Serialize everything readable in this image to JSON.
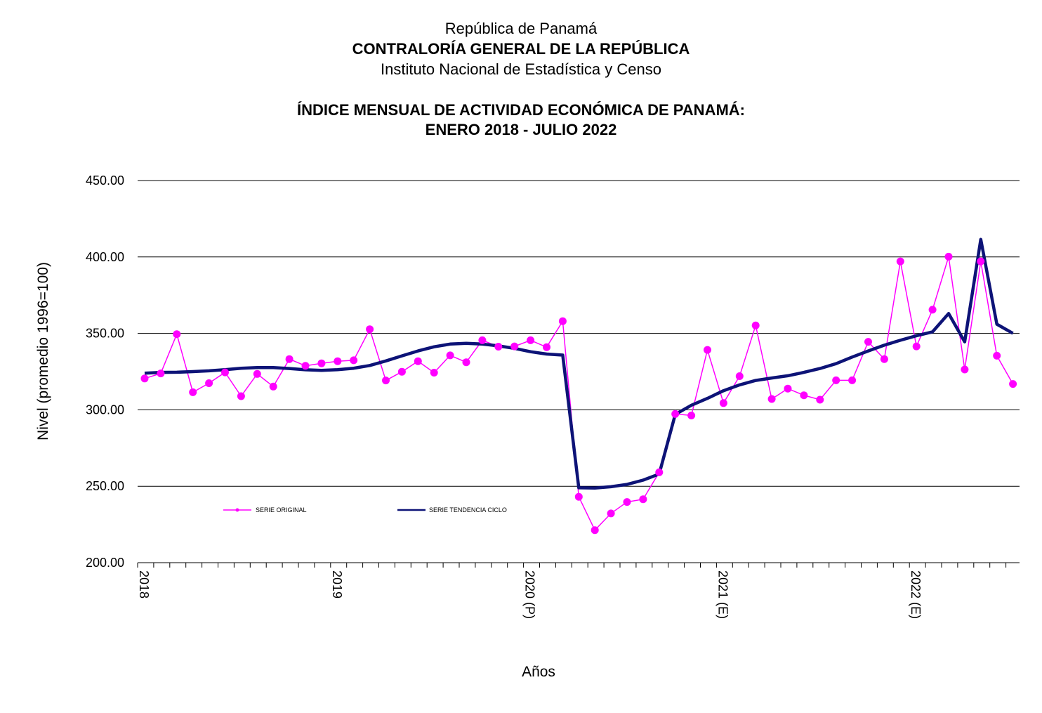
{
  "header": {
    "line1": "República de Panamá",
    "line2": "CONTRALORÍA  GENERAL DE LA REPÚBLICA",
    "line3": "Instituto Nacional de Estadística y Censo"
  },
  "chart_data": {
    "type": "line",
    "title": "ÍNDICE MENSUAL DE ACTIVIDAD ECONÓMICA DE PANAMÁ:",
    "subtitle": "ENERO 2018 -  JULIO 2022",
    "xlabel": "Años",
    "ylabel": "Nivel (promedio 1996=100)",
    "ylim": [
      200,
      450
    ],
    "yticks": [
      "200.00",
      "250.00",
      "300.00",
      "350.00",
      "400.00",
      "450.00"
    ],
    "ytick_values": [
      200,
      250,
      300,
      350,
      400,
      450
    ],
    "year_labels": [
      "2018",
      "2019",
      "2020 (P)",
      "2021 (E)",
      "2022 (E)"
    ],
    "grid": true,
    "legend_position": "inside-lower-left",
    "colors": {
      "original": "#ff00ff",
      "trend": "#0d1377",
      "grid": "#000000"
    },
    "series": [
      {
        "name": "SERIE ORIGINAL",
        "values": [
          320.5,
          323.8,
          349.5,
          311.5,
          317.4,
          324.5,
          308.9,
          323.5,
          315.2,
          333.2,
          328.8,
          330.4,
          331.8,
          332.4,
          352.7,
          319.2,
          324.9,
          331.8,
          324.3,
          335.6,
          331.1,
          345.5,
          341.3,
          341.5,
          345.5,
          341.0,
          358.0,
          243.1,
          221.3,
          232.2,
          239.7,
          241.5,
          259.1,
          297.3,
          296.3,
          339.2,
          304.4,
          322.0,
          355.2,
          307.1,
          313.9,
          309.5,
          306.6,
          319.3,
          319.3,
          344.5,
          333.2,
          397.1,
          341.5,
          365.5,
          400.2,
          326.4,
          397.1,
          335.4,
          316.9
        ]
      },
      {
        "name": "SERIE TENDENCIA CICLO",
        "values": [
          324.0,
          324.5,
          324.6,
          325.0,
          325.5,
          326.3,
          327.2,
          327.6,
          327.6,
          327.0,
          326.2,
          325.8,
          326.3,
          327.2,
          329.0,
          332.0,
          335.3,
          338.5,
          341.2,
          343.0,
          343.5,
          343.0,
          341.8,
          340.2,
          338.0,
          336.5,
          335.8,
          249.0,
          248.8,
          249.7,
          251.2,
          254.0,
          258.0,
          297.0,
          303.0,
          307.5,
          312.5,
          316.3,
          319.2,
          320.8,
          322.3,
          324.5,
          327.0,
          330.2,
          334.5,
          338.5,
          342.3,
          345.5,
          348.5,
          351.0,
          363.0,
          344.5,
          411.5,
          356.0,
          350.0
        ]
      }
    ]
  }
}
